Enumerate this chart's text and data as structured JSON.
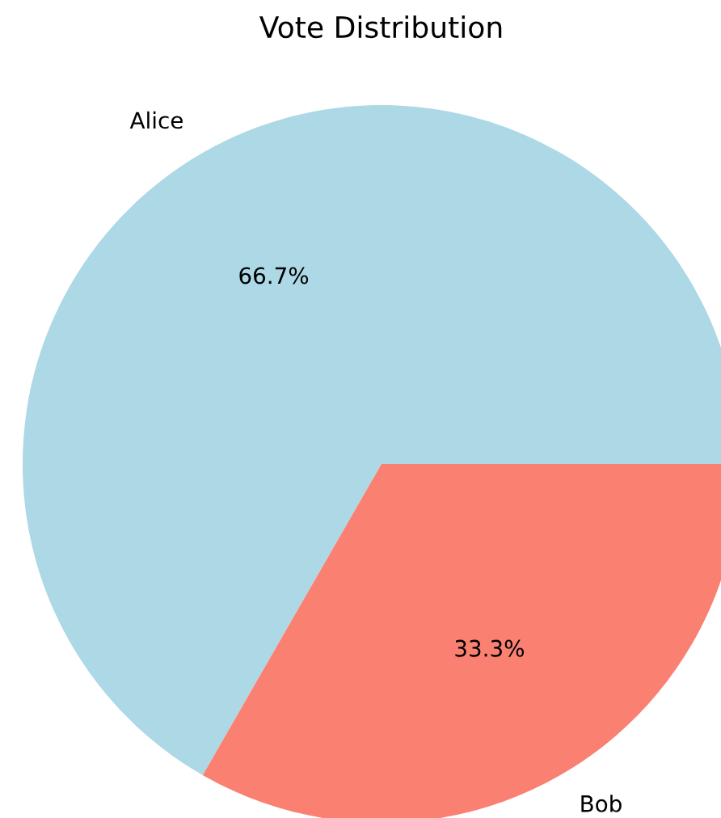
{
  "chart_data": {
    "type": "pie",
    "title": "Vote Distribution",
    "categories": [
      "Alice",
      "Bob"
    ],
    "values": [
      66.7,
      33.3
    ],
    "colors": [
      "#add8e6",
      "#fa8072"
    ],
    "value_labels": [
      "66.7%",
      "33.3%"
    ]
  }
}
